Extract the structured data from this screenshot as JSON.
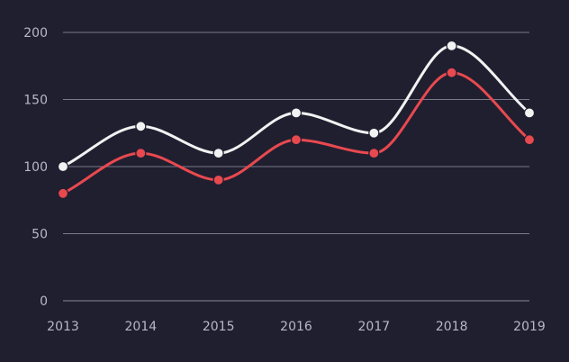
{
  "chart_data": {
    "type": "line",
    "title": "",
    "xlabel": "",
    "ylabel": "",
    "categories": [
      "2013",
      "2014",
      "2015",
      "2016",
      "2017",
      "2018",
      "2019"
    ],
    "series": [
      {
        "values": [
          100,
          130,
          110,
          140,
          125,
          190,
          140
        ],
        "color": "#f2f2f2"
      },
      {
        "values": [
          80,
          110,
          90,
          120,
          110,
          170,
          120
        ],
        "color": "#e8494f"
      }
    ],
    "ylim": [
      0,
      200
    ],
    "yticks": [
      "0",
      "50",
      "100",
      "150",
      "200"
    ],
    "grid": true,
    "curve": "smooth",
    "background": "#201f30"
  }
}
